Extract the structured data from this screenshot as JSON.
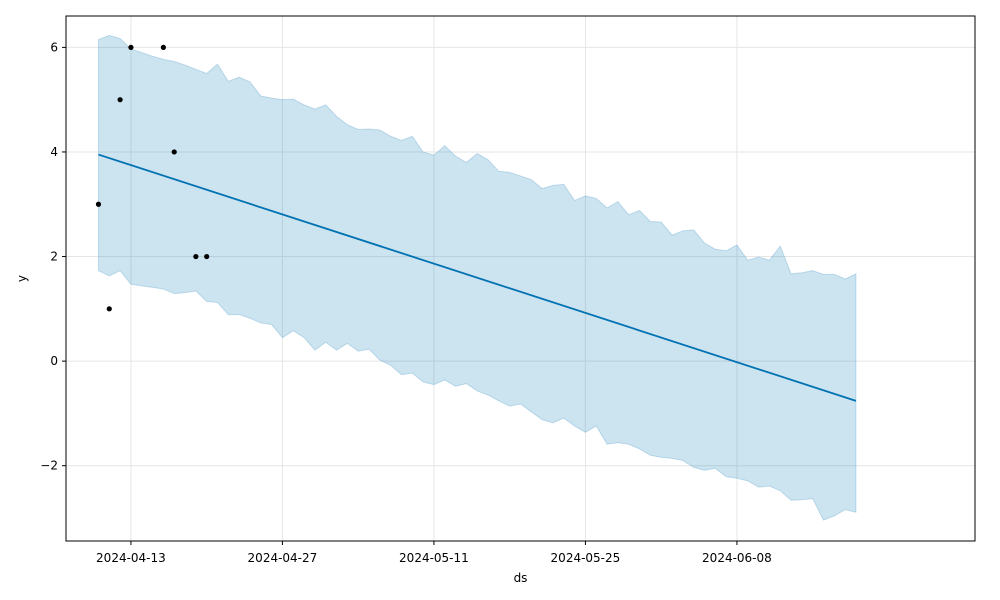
{
  "chart_data": {
    "type": "line",
    "title": "",
    "xlabel": "ds",
    "ylabel": "y",
    "grid": true,
    "colors": {
      "forecast_line": "#0072B2",
      "uncertainty_fill": "#0072B2",
      "observed_points": "#000000",
      "grid": "#e6e6e6"
    },
    "xlim": [
      "2024-04-07",
      "2024-06-30"
    ],
    "ylim": [
      -3.44,
      6.6
    ],
    "x_ticks": [
      "2024-04-13",
      "2024-04-27",
      "2024-05-11",
      "2024-05-25",
      "2024-06-08"
    ],
    "y_ticks": [
      {
        "value": 6,
        "label": "6"
      },
      {
        "value": 4,
        "label": "4"
      },
      {
        "value": 2,
        "label": "2"
      },
      {
        "value": 0,
        "label": "0"
      },
      {
        "value": -2,
        "label": "−2"
      }
    ],
    "observed": [
      {
        "x": "2024-04-10",
        "y": 3
      },
      {
        "x": "2024-04-11",
        "y": 1
      },
      {
        "x": "2024-04-12",
        "y": 5
      },
      {
        "x": "2024-04-13",
        "y": 6
      },
      {
        "x": "2024-04-16",
        "y": 6
      },
      {
        "x": "2024-04-17",
        "y": 4
      },
      {
        "x": "2024-04-19",
        "y": 2
      },
      {
        "x": "2024-04-20",
        "y": 2
      }
    ],
    "forecast": {
      "x": [
        "2024-04-10",
        "2024-06-19"
      ],
      "y": [
        3.95,
        -0.76
      ]
    },
    "uncertainty": {
      "x": [
        "2024-04-10",
        "2024-04-11",
        "2024-04-12",
        "2024-04-13",
        "2024-04-14",
        "2024-04-15",
        "2024-04-16",
        "2024-04-17",
        "2024-04-18",
        "2024-04-19",
        "2024-04-20",
        "2024-04-21",
        "2024-04-22",
        "2024-04-23",
        "2024-04-24",
        "2024-04-25",
        "2024-04-26",
        "2024-04-27",
        "2024-04-28",
        "2024-04-29",
        "2024-04-30",
        "2024-05-01",
        "2024-05-02",
        "2024-05-03",
        "2024-05-04",
        "2024-05-05",
        "2024-05-06",
        "2024-05-07",
        "2024-05-08",
        "2024-05-09",
        "2024-05-10",
        "2024-05-11",
        "2024-05-12",
        "2024-05-13",
        "2024-05-14",
        "2024-05-15",
        "2024-05-16",
        "2024-05-17",
        "2024-05-18",
        "2024-05-19",
        "2024-05-20",
        "2024-05-21",
        "2024-05-22",
        "2024-05-23",
        "2024-05-24",
        "2024-05-25",
        "2024-05-26",
        "2024-05-27",
        "2024-05-28",
        "2024-05-29",
        "2024-05-30",
        "2024-05-31",
        "2024-06-01",
        "2024-06-02",
        "2024-06-03",
        "2024-06-04",
        "2024-06-05",
        "2024-06-06",
        "2024-06-07",
        "2024-06-08",
        "2024-06-09",
        "2024-06-10",
        "2024-06-11",
        "2024-06-12",
        "2024-06-13",
        "2024-06-14",
        "2024-06-15",
        "2024-06-16",
        "2024-06-17",
        "2024-06-18",
        "2024-06-19"
      ],
      "upper": [
        6.15,
        6.23,
        6.17,
        5.97,
        5.9,
        5.83,
        5.77,
        5.73,
        5.66,
        5.58,
        5.5,
        5.68,
        5.35,
        5.43,
        5.34,
        5.07,
        5.03,
        5.0,
        5.01,
        4.9,
        4.82,
        4.9,
        4.68,
        4.52,
        4.43,
        4.44,
        4.42,
        4.3,
        4.22,
        4.3,
        4.0,
        3.94,
        4.12,
        3.92,
        3.8,
        3.97,
        3.85,
        3.63,
        3.61,
        3.54,
        3.47,
        3.3,
        3.36,
        3.38,
        3.07,
        3.16,
        3.11,
        2.93,
        3.05,
        2.8,
        2.88,
        2.67,
        2.66,
        2.41,
        2.49,
        2.51,
        2.26,
        2.14,
        2.11,
        2.22,
        1.93,
        1.99,
        1.93,
        2.2,
        1.67,
        1.69,
        1.73,
        1.66,
        1.66,
        1.57,
        1.67
      ],
      "lower": [
        1.73,
        1.63,
        1.73,
        1.47,
        1.44,
        1.41,
        1.38,
        1.29,
        1.31,
        1.34,
        1.14,
        1.12,
        0.89,
        0.89,
        0.82,
        0.73,
        0.7,
        0.45,
        0.58,
        0.45,
        0.21,
        0.36,
        0.21,
        0.34,
        0.19,
        0.23,
        0.02,
        -0.08,
        -0.26,
        -0.23,
        -0.4,
        -0.45,
        -0.36,
        -0.48,
        -0.43,
        -0.57,
        -0.65,
        -0.76,
        -0.86,
        -0.82,
        -0.97,
        -1.12,
        -1.18,
        -1.09,
        -1.24,
        -1.36,
        -1.24,
        -1.59,
        -1.56,
        -1.59,
        -1.68,
        -1.8,
        -1.84,
        -1.86,
        -1.9,
        -2.03,
        -2.09,
        -2.05,
        -2.21,
        -2.24,
        -2.29,
        -2.41,
        -2.39,
        -2.48,
        -2.66,
        -2.65,
        -2.63,
        -3.04,
        -2.96,
        -2.84,
        -2.89
      ]
    }
  }
}
